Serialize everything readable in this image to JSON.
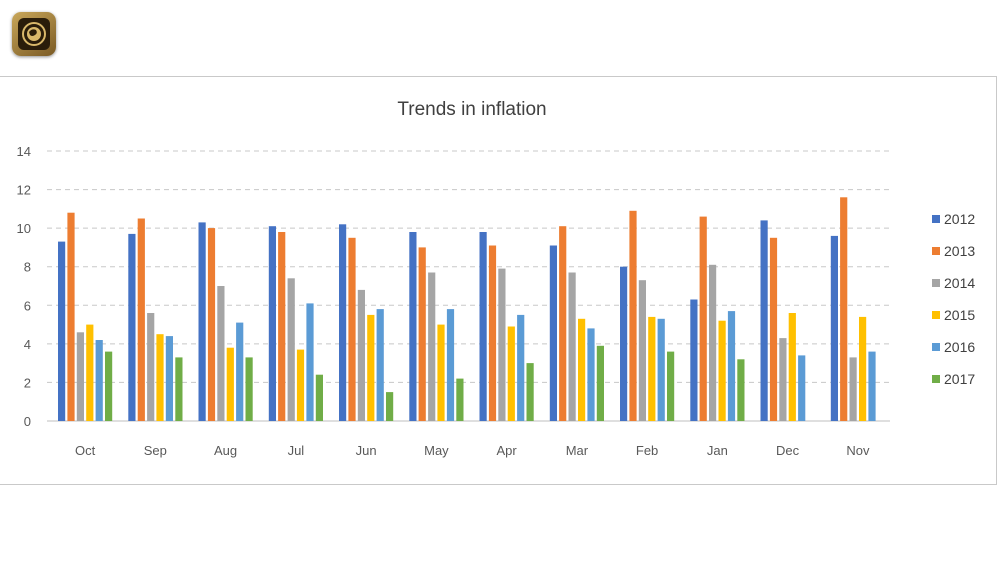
{
  "colors": {
    "2012": "#4472c4",
    "2013": "#ed7d31",
    "2014": "#a5a5a5",
    "2015": "#ffc000",
    "2016": "#5b9bd5",
    "2017": "#70ad47"
  },
  "logo": {
    "icon": "globe-emblem-icon"
  },
  "chart_data": {
    "type": "bar",
    "title": "Trends in inflation",
    "xlabel": "",
    "ylabel": "",
    "ylim": [
      0,
      14
    ],
    "yticks": [
      0,
      2,
      4,
      6,
      8,
      10,
      12,
      14
    ],
    "grid": true,
    "legend_position": "right",
    "categories": [
      "Oct",
      "Sep",
      "Aug",
      "Jul",
      "Jun",
      "May",
      "Apr",
      "Mar",
      "Feb",
      "Jan",
      "Dec",
      "Nov"
    ],
    "series": [
      {
        "name": "2012",
        "values": [
          9.3,
          9.7,
          10.3,
          10.1,
          10.2,
          9.8,
          9.8,
          9.1,
          8.0,
          6.3,
          10.4,
          9.6
        ]
      },
      {
        "name": "2013",
        "values": [
          10.8,
          10.5,
          10.0,
          9.8,
          9.5,
          9.0,
          9.1,
          10.1,
          10.9,
          10.6,
          9.5,
          11.6
        ]
      },
      {
        "name": "2014",
        "values": [
          4.6,
          5.6,
          7.0,
          7.4,
          6.8,
          7.7,
          7.9,
          7.7,
          7.3,
          8.1,
          4.3,
          3.3
        ]
      },
      {
        "name": "2015",
        "values": [
          5.0,
          4.5,
          3.8,
          3.7,
          5.5,
          5.0,
          4.9,
          5.3,
          5.4,
          5.2,
          5.6,
          5.4
        ]
      },
      {
        "name": "2016",
        "values": [
          4.2,
          4.4,
          5.1,
          6.1,
          5.8,
          5.8,
          5.5,
          4.8,
          5.3,
          5.7,
          3.4,
          3.6
        ]
      },
      {
        "name": "2017",
        "values": [
          3.6,
          3.3,
          3.3,
          2.4,
          1.5,
          2.2,
          3.0,
          3.9,
          3.6,
          3.2,
          null,
          null
        ]
      }
    ]
  }
}
